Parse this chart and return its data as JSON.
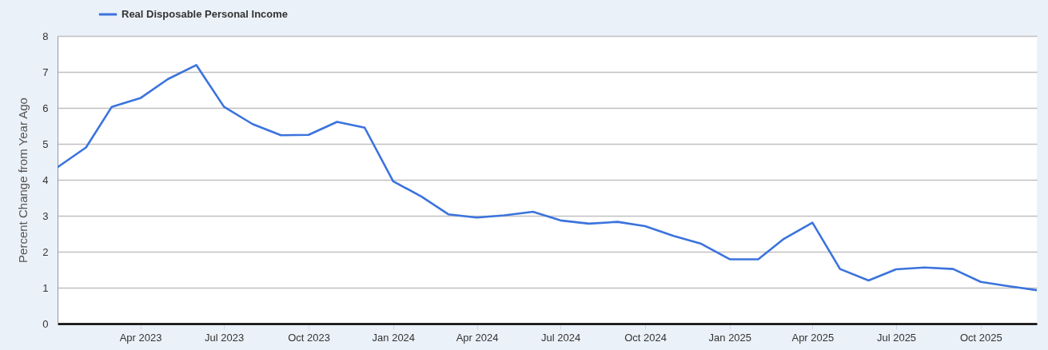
{
  "chart_data": {
    "type": "line",
    "ylabel": "Percent Change from Year Ago",
    "x": [
      "2023-01",
      "2023-02",
      "2023-03",
      "2023-04",
      "2023-05",
      "2023-06",
      "2023-07",
      "2023-08",
      "2023-09",
      "2023-10",
      "2023-11",
      "2023-12",
      "2024-01",
      "2024-02",
      "2024-03",
      "2024-04",
      "2024-05",
      "2024-06",
      "2024-07",
      "2024-08",
      "2024-09",
      "2024-10",
      "2024-11",
      "2024-12",
      "2025-01",
      "2025-02",
      "2025-03",
      "2025-04",
      "2025-05",
      "2025-06",
      "2025-07",
      "2025-08",
      "2025-09",
      "2025-10",
      "2025-11",
      "2025-12"
    ],
    "series": [
      {
        "name": "Real Disposable Personal Income",
        "color": "#3b73dd",
        "values": [
          4.35,
          4.9,
          6.03,
          6.27,
          6.8,
          7.19,
          6.03,
          5.55,
          5.24,
          5.25,
          5.61,
          5.45,
          3.96,
          3.53,
          3.04,
          2.95,
          3.01,
          3.11,
          2.87,
          2.78,
          2.83,
          2.71,
          2.44,
          2.22,
          1.79,
          1.79,
          2.36,
          2.81,
          1.52,
          1.2,
          1.51,
          1.56,
          1.52,
          1.16,
          1.04,
          0.93
        ]
      }
    ],
    "xlim": [
      "2023-01",
      "2025-12"
    ],
    "xticks": [
      {
        "value": "2023-04",
        "label": "Apr 2023"
      },
      {
        "value": "2023-07",
        "label": "Jul 2023"
      },
      {
        "value": "2023-10",
        "label": "Oct 2023"
      },
      {
        "value": "2024-01",
        "label": "Jan 2024"
      },
      {
        "value": "2024-04",
        "label": "Apr 2024"
      },
      {
        "value": "2024-07",
        "label": "Jul 2024"
      },
      {
        "value": "2024-10",
        "label": "Oct 2024"
      },
      {
        "value": "2025-01",
        "label": "Jan 2025"
      },
      {
        "value": "2025-04",
        "label": "Apr 2025"
      },
      {
        "value": "2025-07",
        "label": "Jul 2025"
      },
      {
        "value": "2025-10",
        "label": "Oct 2025"
      }
    ],
    "ylim": [
      0,
      8
    ],
    "yticks": [
      0,
      1,
      2,
      3,
      4,
      5,
      6,
      7,
      8
    ],
    "grid": "y",
    "legend": "top left"
  }
}
